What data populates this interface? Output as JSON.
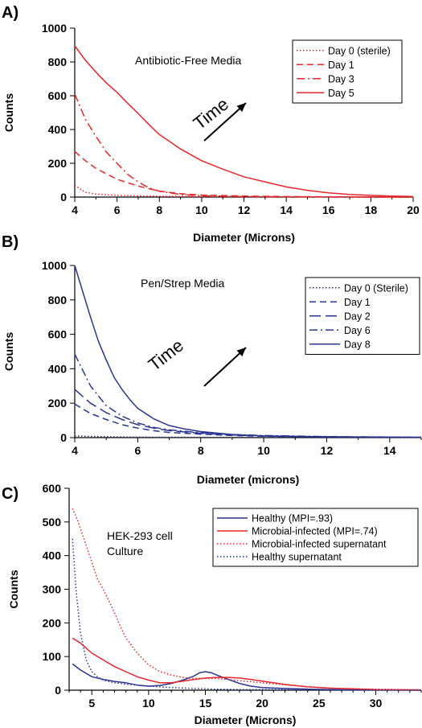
{
  "chart_data": [
    {
      "type": "line",
      "panel": "A)",
      "annotation": "Antibiotic-Free Media",
      "arrow_label": "Time",
      "xlabel": "Diameter (Microns)",
      "ylabel": "Counts",
      "xlim": [
        4,
        20
      ],
      "ylim": [
        0,
        1000
      ],
      "xticks": [
        "4",
        "6",
        "8",
        "10",
        "12",
        "14",
        "16",
        "18",
        "20"
      ],
      "yticks": [
        "0",
        "200",
        "400",
        "600",
        "800",
        "1000"
      ],
      "grid": false,
      "legend_position": "top-right",
      "series": [
        {
          "name": "Day 0 (sterile)",
          "color": "#e8262b",
          "dash": "dot",
          "x": [
            4,
            4.5,
            5,
            6,
            7,
            8,
            10,
            12,
            14,
            16,
            18,
            20
          ],
          "y": [
            70,
            28,
            18,
            10,
            7,
            5,
            3,
            2,
            1,
            1,
            0,
            0
          ]
        },
        {
          "name": "Day 1",
          "color": "#e8262b",
          "dash": "dash",
          "x": [
            4,
            4.5,
            5,
            6,
            7,
            8,
            9,
            10,
            12,
            14,
            16,
            18,
            20
          ],
          "y": [
            270,
            215,
            170,
            105,
            65,
            35,
            20,
            12,
            6,
            3,
            2,
            1,
            0
          ]
        },
        {
          "name": "Day 3",
          "color": "#e8262b",
          "dash": "dashdot",
          "x": [
            4,
            4.5,
            5,
            5.5,
            6,
            6.5,
            7,
            7.5,
            8,
            9,
            10,
            12,
            14,
            16,
            18,
            20
          ],
          "y": [
            610,
            460,
            360,
            265,
            200,
            135,
            90,
            55,
            35,
            15,
            8,
            3,
            2,
            1,
            0,
            0
          ]
        },
        {
          "name": "Day 5",
          "color": "#e8262b",
          "dash": "solid",
          "x": [
            4,
            4.5,
            5,
            5.5,
            6,
            6.5,
            7,
            7.5,
            8,
            9,
            10,
            11,
            12,
            13,
            14,
            15,
            16,
            17,
            18,
            19,
            20
          ],
          "y": [
            895,
            810,
            740,
            675,
            620,
            555,
            495,
            430,
            370,
            285,
            215,
            165,
            120,
            90,
            60,
            40,
            25,
            15,
            10,
            6,
            4
          ]
        }
      ]
    },
    {
      "type": "line",
      "panel": "B)",
      "annotation": "Pen/Strep Media",
      "arrow_label": "Time",
      "xlabel": "Diameter (microns)",
      "ylabel": "Counts",
      "xlim": [
        4,
        15
      ],
      "ylim": [
        0,
        1000
      ],
      "xticks": [
        "4",
        "6",
        "8",
        "10",
        "12",
        "14"
      ],
      "yticks": [
        "0",
        "200",
        "400",
        "600",
        "800",
        "1000"
      ],
      "grid": false,
      "legend_position": "top-right",
      "series": [
        {
          "name": "Day 0 (Sterile)",
          "color": "#2a3591",
          "dash": "dot",
          "x": [
            4,
            5,
            6,
            8,
            10,
            12,
            15
          ],
          "y": [
            10,
            5,
            3,
            2,
            1,
            0,
            0
          ]
        },
        {
          "name": "Day 1",
          "color": "#2a3591",
          "dash": "dash",
          "x": [
            4,
            4.5,
            5,
            5.5,
            6,
            6.5,
            7,
            8,
            9,
            10,
            12,
            15
          ],
          "y": [
            195,
            140,
            105,
            75,
            55,
            40,
            30,
            20,
            12,
            8,
            4,
            2
          ]
        },
        {
          "name": "Day 2",
          "color": "#2a3591",
          "dash": "longdash",
          "x": [
            4,
            4.5,
            5,
            5.5,
            6,
            6.5,
            7,
            8,
            9,
            10,
            12,
            15
          ],
          "y": [
            280,
            200,
            145,
            105,
            75,
            55,
            40,
            25,
            15,
            10,
            5,
            2
          ]
        },
        {
          "name": "Day 6",
          "color": "#2a3591",
          "dash": "dashdot",
          "x": [
            4,
            4.5,
            5,
            5.5,
            6,
            6.5,
            7,
            8,
            9,
            10,
            12,
            15
          ],
          "y": [
            485,
            300,
            185,
            125,
            85,
            60,
            45,
            28,
            18,
            12,
            6,
            2
          ]
        },
        {
          "name": "Day 8",
          "color": "#2a3591",
          "dash": "solid",
          "x": [
            4,
            4.25,
            4.5,
            4.75,
            5,
            5.25,
            5.5,
            5.75,
            6,
            6.5,
            7,
            7.5,
            8,
            9,
            10,
            11,
            12,
            13,
            14,
            15
          ],
          "y": [
            1000,
            850,
            700,
            560,
            450,
            350,
            280,
            220,
            170,
            110,
            70,
            50,
            35,
            18,
            10,
            6,
            4,
            3,
            2,
            2
          ]
        }
      ]
    },
    {
      "type": "line",
      "panel": "C)",
      "annotation": [
        "HEK-293 cell",
        "Culture"
      ],
      "xlabel": "Diameter (Microns)",
      "ylabel": "Counts",
      "xlim": [
        3,
        34
      ],
      "ylim": [
        0,
        600
      ],
      "xticks": [
        "5",
        "10",
        "15",
        "20",
        "25",
        "30"
      ],
      "yticks": [
        "0",
        "100",
        "200",
        "300",
        "400",
        "500",
        "600"
      ],
      "grid": false,
      "legend_position": "top-right",
      "series": [
        {
          "name": "Healthy (MPI=.93)",
          "color": "#2a3591",
          "dash": "solid",
          "x": [
            3.3,
            4,
            5,
            6,
            7,
            8,
            9,
            10,
            11,
            12,
            13,
            14,
            14.5,
            15,
            15.5,
            16,
            17,
            18,
            19,
            20,
            22,
            24,
            26,
            28,
            30,
            34
          ],
          "y": [
            78,
            60,
            40,
            32,
            26,
            22,
            15,
            12,
            14,
            20,
            30,
            42,
            52,
            55,
            52,
            45,
            32,
            20,
            12,
            8,
            5,
            3,
            2,
            1,
            1,
            0
          ]
        },
        {
          "name": "Microbial-infected (MPI=.74)",
          "color": "#e8262b",
          "dash": "solid",
          "x": [
            3.3,
            4,
            5,
            6,
            7,
            8,
            9,
            10,
            11,
            12,
            13,
            14,
            15,
            16,
            17,
            18,
            19,
            20,
            21,
            22,
            24,
            26,
            28,
            30,
            34
          ],
          "y": [
            155,
            140,
            110,
            90,
            70,
            55,
            40,
            30,
            22,
            22,
            27,
            32,
            36,
            38,
            38,
            36,
            32,
            27,
            22,
            17,
            10,
            6,
            4,
            2,
            1
          ]
        },
        {
          "name": "Microbial-infected supernatant",
          "color": "#e8262b",
          "dash": "dot",
          "x": [
            3.3,
            3.8,
            4.5,
            5,
            5.5,
            6,
            6.5,
            7,
            7.5,
            8,
            9,
            10,
            11,
            12,
            13,
            14,
            15,
            16,
            17,
            18,
            19,
            20,
            22,
            24,
            26,
            28,
            30,
            34
          ],
          "y": [
            540,
            500,
            430,
            380,
            330,
            300,
            265,
            230,
            190,
            155,
            110,
            75,
            55,
            45,
            38,
            35,
            35,
            35,
            32,
            28,
            25,
            22,
            16,
            10,
            6,
            4,
            3,
            1
          ]
        },
        {
          "name": "Healthy supernatant",
          "color": "#2a3591",
          "dash": "dot",
          "x": [
            3.3,
            3.6,
            4,
            4.5,
            5,
            5.5,
            6,
            7,
            8,
            9,
            10,
            12,
            14,
            16,
            18,
            20,
            25,
            30,
            34
          ],
          "y": [
            450,
            300,
            170,
            90,
            55,
            40,
            30,
            22,
            18,
            15,
            12,
            8,
            5,
            3,
            2,
            2,
            1,
            0,
            0
          ]
        }
      ]
    }
  ]
}
